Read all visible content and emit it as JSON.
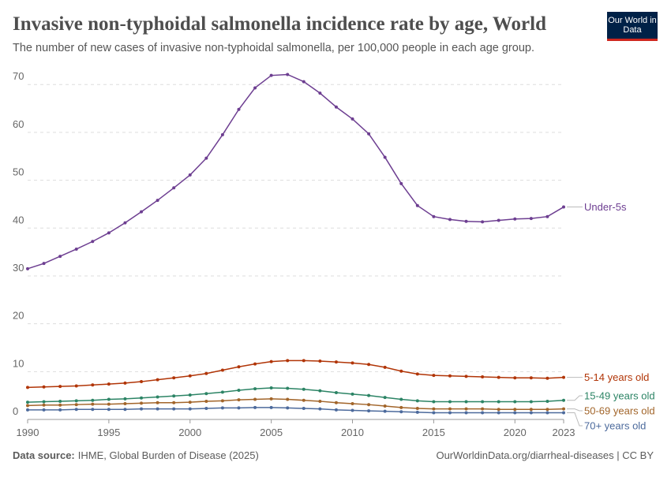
{
  "chart_data": {
    "type": "line",
    "title": "Invasive non-typhoidal salmonella incidence rate by age, World",
    "subtitle": "The number of new cases of invasive non-typhoidal salmonella, per 100,000 people in each age group.",
    "x": [
      1990,
      1991,
      1992,
      1993,
      1994,
      1995,
      1996,
      1997,
      1998,
      1999,
      2000,
      2001,
      2002,
      2003,
      2004,
      2005,
      2006,
      2007,
      2008,
      2009,
      2010,
      2011,
      2012,
      2013,
      2014,
      2015,
      2016,
      2017,
      2018,
      2019,
      2020,
      2021,
      2022,
      2023
    ],
    "xlim": [
      1990,
      2023
    ],
    "xticks": [
      1990,
      1995,
      2000,
      2005,
      2010,
      2015,
      2020,
      2023
    ],
    "ylim": [
      0,
      73
    ],
    "yticks": [
      0,
      10,
      20,
      30,
      40,
      50,
      60,
      70
    ],
    "grid": true,
    "series": [
      {
        "name": "Under-5s",
        "color": "#6d3e91",
        "values": [
          31.5,
          32.6,
          34.1,
          35.6,
          37.2,
          39.0,
          41.1,
          43.4,
          45.8,
          48.4,
          51.1,
          54.6,
          59.5,
          64.8,
          69.3,
          71.9,
          72.1,
          70.6,
          68.2,
          65.3,
          62.8,
          59.7,
          54.8,
          49.3,
          44.7,
          42.4,
          41.8,
          41.4,
          41.3,
          41.6,
          41.9,
          42.0,
          42.4,
          44.4
        ]
      },
      {
        "name": "5-14 years old",
        "color": "#b13507",
        "values": [
          6.7,
          6.8,
          6.9,
          7.0,
          7.2,
          7.4,
          7.6,
          7.9,
          8.3,
          8.7,
          9.1,
          9.6,
          10.3,
          11.0,
          11.6,
          12.1,
          12.3,
          12.3,
          12.2,
          12.0,
          11.8,
          11.5,
          10.9,
          10.1,
          9.5,
          9.2,
          9.1,
          9.0,
          8.9,
          8.8,
          8.7,
          8.7,
          8.6,
          8.8
        ]
      },
      {
        "name": "15-49 years old",
        "color": "#2c8465",
        "values": [
          3.6,
          3.7,
          3.8,
          3.9,
          4.0,
          4.2,
          4.3,
          4.5,
          4.7,
          4.9,
          5.1,
          5.4,
          5.7,
          6.1,
          6.4,
          6.6,
          6.5,
          6.3,
          6.0,
          5.6,
          5.3,
          5.0,
          4.6,
          4.2,
          3.9,
          3.7,
          3.7,
          3.7,
          3.7,
          3.7,
          3.7,
          3.7,
          3.8,
          4.0
        ]
      },
      {
        "name": "50-69 years old",
        "color": "#a2652a",
        "values": [
          2.9,
          3.0,
          3.0,
          3.1,
          3.2,
          3.2,
          3.3,
          3.4,
          3.5,
          3.5,
          3.6,
          3.8,
          3.9,
          4.1,
          4.2,
          4.3,
          4.2,
          4.0,
          3.8,
          3.5,
          3.3,
          3.1,
          2.8,
          2.5,
          2.3,
          2.2,
          2.2,
          2.2,
          2.2,
          2.1,
          2.1,
          2.1,
          2.1,
          2.2
        ]
      },
      {
        "name": "70+ years old",
        "color": "#4c6a9c",
        "values": [
          2.0,
          2.0,
          2.0,
          2.1,
          2.1,
          2.1,
          2.1,
          2.2,
          2.2,
          2.2,
          2.2,
          2.3,
          2.4,
          2.4,
          2.5,
          2.5,
          2.4,
          2.3,
          2.2,
          2.0,
          1.9,
          1.8,
          1.7,
          1.6,
          1.5,
          1.4,
          1.4,
          1.4,
          1.4,
          1.4,
          1.4,
          1.4,
          1.4,
          1.4
        ]
      }
    ]
  },
  "logo": "Our World in Data",
  "source_label": "Data source:",
  "source": "IHME, Global Burden of Disease (2025)",
  "footer_right": "OurWorldinData.org/diarrheal-diseases | CC BY"
}
